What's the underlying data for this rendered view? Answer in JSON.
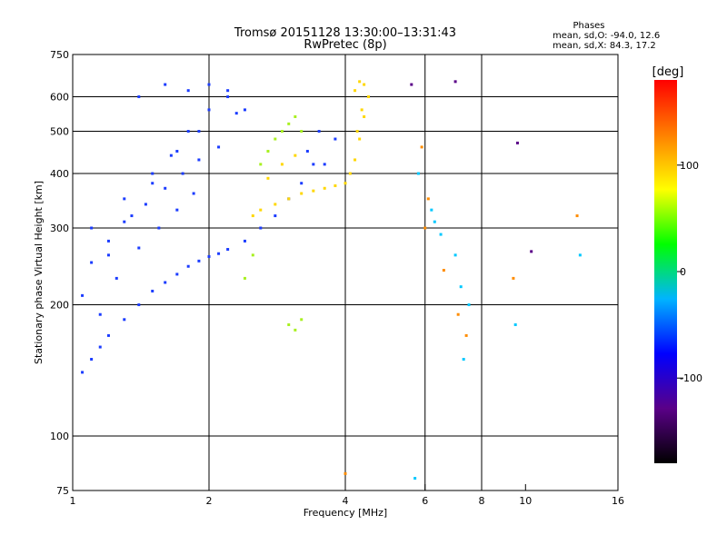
{
  "header": {
    "title_line1": "Tromsø 20151128 13:30:00–13:31:43",
    "title_line2": "RwPretec (8p)",
    "stats_title": "Phases",
    "stats_line1": "mean, sd,O: -94.0, 12.6",
    "stats_line2": "mean, sd,X:  84.3, 17.2"
  },
  "chart_data": {
    "type": "scatter",
    "xlabel": "Frequency [MHz]",
    "ylabel": "Stationary phase Virtual Height [km]",
    "x_scale": "log",
    "y_scale": "log",
    "xlim": [
      1,
      16
    ],
    "ylim": [
      75,
      750
    ],
    "xticks": [
      1,
      2,
      4,
      6,
      8,
      10,
      16
    ],
    "xtick_labels": [
      "1",
      "2",
      "4",
      "6",
      "8",
      "10",
      "16"
    ],
    "yticks": [
      75,
      100,
      200,
      300,
      400,
      500,
      600,
      750
    ],
    "ytick_labels": [
      "75",
      "100",
      "200",
      "300",
      "400",
      "500",
      "600",
      "750"
    ],
    "grid_x": [
      2,
      4,
      6,
      8
    ],
    "grid_y": [
      100,
      200,
      300,
      400,
      500,
      600
    ],
    "colorbar": {
      "label": "[deg]",
      "ticks": [
        100,
        0,
        -100
      ],
      "tick_labels": [
        "100",
        "0",
        "-100"
      ],
      "range": [
        -180,
        180
      ],
      "colors": [
        "#000000",
        "#5a0088",
        "#0000ff",
        "#00b4ff",
        "#00ff00",
        "#ffff00",
        "#ff8000",
        "#ff0000"
      ]
    },
    "series": [
      {
        "phase_deg": -100,
        "color": "#1b3cff",
        "x": [
          1.05,
          1.1,
          1.15,
          1.2,
          1.3,
          1.4,
          1.5,
          1.6,
          1.7,
          1.8,
          1.9,
          2.0,
          2.1,
          2.2,
          2.4,
          2.6,
          2.8,
          3.0,
          3.2,
          3.4,
          1.1,
          1.2,
          1.3,
          1.45,
          1.6,
          1.75,
          1.9,
          2.1,
          1.15,
          1.25,
          1.4,
          1.55,
          1.7,
          1.85,
          1.05,
          1.2,
          1.35,
          1.5,
          1.65,
          1.8,
          2.0,
          2.2,
          1.1,
          1.3,
          1.5,
          1.7,
          1.9,
          2.3,
          1.4,
          1.6,
          1.8,
          2.0,
          2.2,
          2.4,
          3.3,
          3.5,
          3.6,
          3.8
        ],
        "y": [
          140,
          150,
          160,
          170,
          185,
          200,
          215,
          225,
          235,
          245,
          252,
          258,
          262,
          268,
          280,
          300,
          320,
          350,
          380,
          420,
          250,
          280,
          310,
          340,
          370,
          400,
          430,
          460,
          190,
          230,
          270,
          300,
          330,
          360,
          210,
          260,
          320,
          380,
          440,
          500,
          560,
          620,
          300,
          350,
          400,
          450,
          500,
          550,
          600,
          640,
          620,
          640,
          600,
          560,
          450,
          500,
          420,
          480
        ]
      },
      {
        "phase_deg": 80,
        "color": "#ffd700",
        "x": [
          2.5,
          2.6,
          2.8,
          3.0,
          3.2,
          3.4,
          3.6,
          3.8,
          4.0,
          4.1,
          4.2,
          4.3,
          4.4,
          4.5,
          4.2,
          4.3,
          4.4,
          4.35,
          4.25,
          2.7,
          2.9,
          3.1
        ],
        "y": [
          320,
          330,
          340,
          350,
          360,
          365,
          370,
          375,
          380,
          400,
          430,
          480,
          540,
          600,
          620,
          650,
          640,
          560,
          500,
          390,
          420,
          440
        ]
      },
      {
        "phase_deg": 45,
        "color": "#a8f020",
        "x": [
          2.6,
          2.7,
          2.8,
          2.9,
          3.0,
          3.1,
          3.2,
          2.5,
          2.4,
          3.0,
          3.1,
          3.2
        ],
        "y": [
          420,
          450,
          480,
          500,
          520,
          540,
          500,
          260,
          230,
          180,
          175,
          185
        ]
      },
      {
        "phase_deg": -10,
        "color": "#00c8ff",
        "x": [
          5.8,
          6.2,
          6.5,
          7.0,
          7.2,
          7.5,
          9.5,
          13.2,
          5.7,
          6.3,
          7.3
        ],
        "y": [
          400,
          330,
          290,
          260,
          220,
          200,
          180,
          260,
          80,
          310,
          150
        ]
      },
      {
        "phase_deg": 130,
        "color": "#ff8c00",
        "x": [
          5.9,
          6.1,
          6.6,
          7.1,
          7.4,
          9.4,
          13.0,
          4.0,
          6.0
        ],
        "y": [
          460,
          350,
          240,
          190,
          170,
          230,
          320,
          82,
          300
        ]
      },
      {
        "phase_deg": -150,
        "color": "#5a0088",
        "x": [
          10.3,
          7.0,
          5.6,
          9.6
        ],
        "y": [
          265,
          650,
          640,
          470
        ]
      }
    ]
  }
}
